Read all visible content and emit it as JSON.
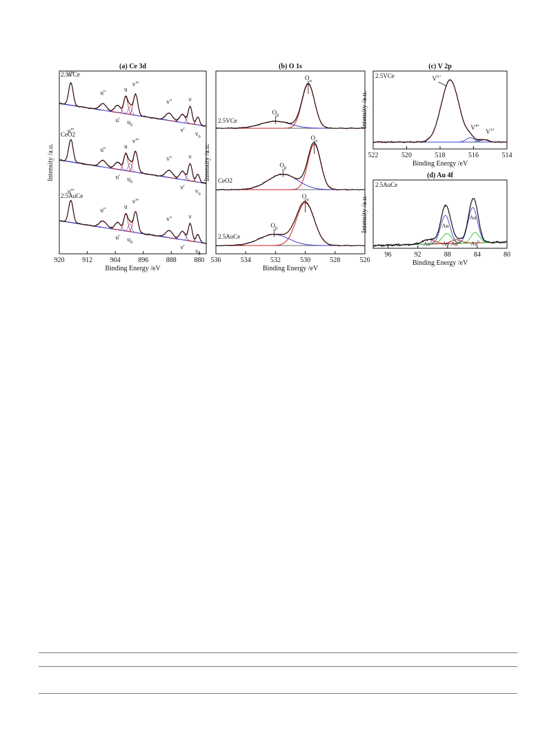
{
  "figure": {
    "chart_data": [
      {
        "id": "ce3d",
        "type": "line",
        "title": "(a) Ce 3d",
        "xlabel": "Binding Energy /eV",
        "ylabel": "Intensity /a.u.",
        "xlim": [
          920,
          878
        ],
        "reversed_x": true,
        "xticks": [
          "920",
          "912",
          "904",
          "896",
          "888",
          "880"
        ],
        "samples": [
          {
            "name": "2.5VCe",
            "labels": [
              "u'''",
              "u''",
              "u",
              "u'",
              "u0",
              "v'''",
              "v''",
              "v",
              "v'",
              "v0"
            ]
          },
          {
            "name": "CeO2",
            "labels": [
              "u'''",
              "u''",
              "u",
              "u'",
              "u0",
              "v'''",
              "v''",
              "v",
              "v'",
              "v0"
            ]
          },
          {
            "name": "2.5AuCe",
            "labels": [
              "u'''",
              "u''",
              "u",
              "u'",
              "u0",
              "v'''",
              "v''",
              "v",
              "v'",
              "v0"
            ]
          }
        ],
        "peak_positions": {
          "u'''": 916.7,
          "u''": 907.5,
          "u": 901.0,
          "u'": 903.3,
          "u0": 899.8,
          "v'''": 898.2,
          "v''": 888.6,
          "v": 882.6,
          "v'": 884.8,
          "v0": 880.4
        },
        "series_colors": {
          "measured": "#111111",
          "fit": "#c8201e",
          "components": "#6a6ad8",
          "baseline": "#2323b8"
        }
      },
      {
        "id": "o1s",
        "type": "line",
        "title": "(b) O 1s",
        "xlabel": "Binding Energy /eV",
        "ylabel": "Intensity /a.u.",
        "xlim": [
          536,
          526
        ],
        "reversed_x": true,
        "xticks": [
          "536",
          "534",
          "532",
          "530",
          "528",
          "526"
        ],
        "samples": [
          {
            "name": "2.5VCe",
            "peaks": [
              {
                "label": "Oβ",
                "x": 532.0
              },
              {
                "label": "Oα",
                "x": 529.8
              }
            ]
          },
          {
            "name": "CeO2",
            "peaks": [
              {
                "label": "Oβ",
                "x": 531.5
              },
              {
                "label": "Oα",
                "x": 529.4
              }
            ]
          },
          {
            "name": "2.5AuCe",
            "peaks": [
              {
                "label": "Oβ",
                "x": 532.1
              },
              {
                "label": "Oα",
                "x": 530.0
              }
            ]
          }
        ],
        "series_colors": {
          "measured": "#111111",
          "fit": "#c8201e",
          "components": "#3c3cd2",
          "baseline": "#2323b8"
        }
      },
      {
        "id": "v2p",
        "type": "line",
        "title": "(c) V 2p",
        "xlabel": "Binding Energy /eV",
        "ylabel": "Intensity /a.u.",
        "xlim": [
          522,
          514
        ],
        "reversed_x": true,
        "xticks": [
          "522",
          "520",
          "518",
          "516",
          "514"
        ],
        "sample": "2.5VCe",
        "peaks": [
          {
            "label": "V5+",
            "x": 517.4
          },
          {
            "label": "V4+",
            "x": 516.2
          },
          {
            "label": "V3+",
            "x": 515.4
          }
        ],
        "series_colors": {
          "measured": "#111111",
          "fit": "#c8201e",
          "components": "#3c3cd2",
          "baseline": "#2fbf2f"
        }
      },
      {
        "id": "au4f",
        "type": "line",
        "title": "(d) Au 4f",
        "xlabel": "Binding Energy /eV",
        "ylabel": "Intensity /a.u.",
        "xlim": [
          98,
          80
        ],
        "reversed_x": true,
        "xticks": [
          "96",
          "92",
          "88",
          "84",
          "80"
        ],
        "sample": "2.5AuCe",
        "peaks": [
          {
            "label": "Au3+",
            "x": 90.5
          },
          {
            "label": "Au",
            "x": 88.3
          },
          {
            "label": "Au+",
            "x": 88.1
          },
          {
            "label": "Au3+",
            "x": 86.8
          },
          {
            "label": "Au",
            "x": 84.6
          },
          {
            "label": "Au0",
            "x": 84.3
          }
        ],
        "series_colors": {
          "measured": "#111111",
          "fit": "#3c3cd2",
          "components": "#2fbf2f",
          "extra": "#c8201e",
          "baseline": "#2fbf2f"
        }
      }
    ]
  }
}
